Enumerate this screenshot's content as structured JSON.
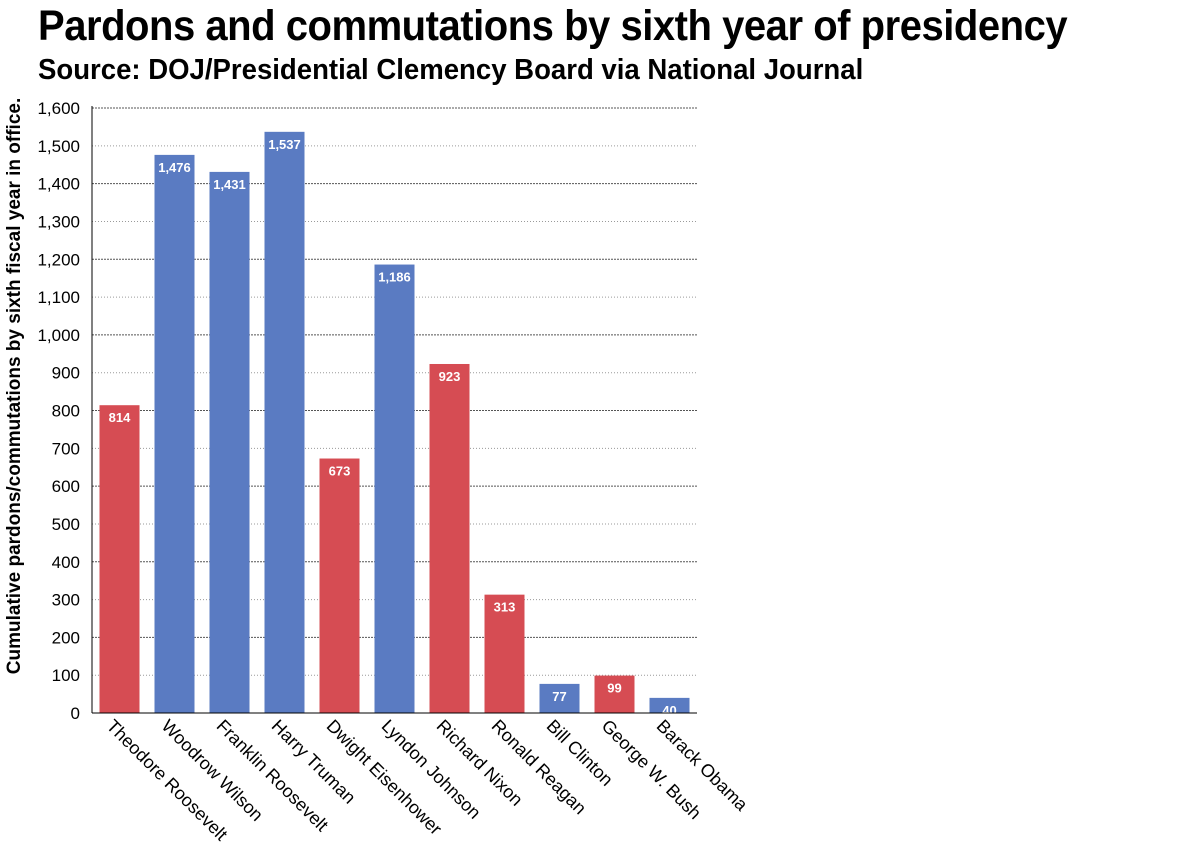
{
  "chart_data": {
    "type": "bar",
    "title": "Pardons and commutations by sixth year of presidency",
    "subtitle": "Source: DOJ/Presidential Clemency Board via National Journal",
    "xlabel": "",
    "ylabel": "Cumulative pardons/commutations by sixth fiscal year in office.",
    "ylim": [
      0,
      1600
    ],
    "yticks": [
      0,
      100,
      200,
      300,
      400,
      500,
      600,
      700,
      800,
      900,
      1000,
      1100,
      1200,
      1300,
      1400,
      1500,
      1600
    ],
    "ytick_labels": [
      "0",
      "100",
      "200",
      "300",
      "400",
      "500",
      "600",
      "700",
      "800",
      "900",
      "1,000",
      "1,100",
      "1,200",
      "1,300",
      "1,400",
      "1,500",
      "1,600"
    ],
    "grid": true,
    "legend": "none",
    "categories": [
      "Theodore Roosevelt",
      "Woodrow Wilson",
      "Franklin Roosevelt",
      "Harry Truman",
      "Dwight Eisenhower",
      "Lyndon Johnson",
      "Richard Nixon",
      "Ronald Reagan",
      "Bill Clinton",
      "George W. Bush",
      "Barack Obama"
    ],
    "values": [
      814,
      1476,
      1431,
      1537,
      673,
      1186,
      923,
      313,
      77,
      99,
      40
    ],
    "value_labels": [
      "814",
      "1,476",
      "1,431",
      "1,537",
      "673",
      "1,186",
      "923",
      "313",
      "77",
      "99",
      "40"
    ],
    "party": [
      "R",
      "D",
      "D",
      "D",
      "R",
      "D",
      "R",
      "R",
      "D",
      "R",
      "D"
    ],
    "colors": {
      "R": "#d64c53",
      "D": "#5a7bc2"
    }
  }
}
